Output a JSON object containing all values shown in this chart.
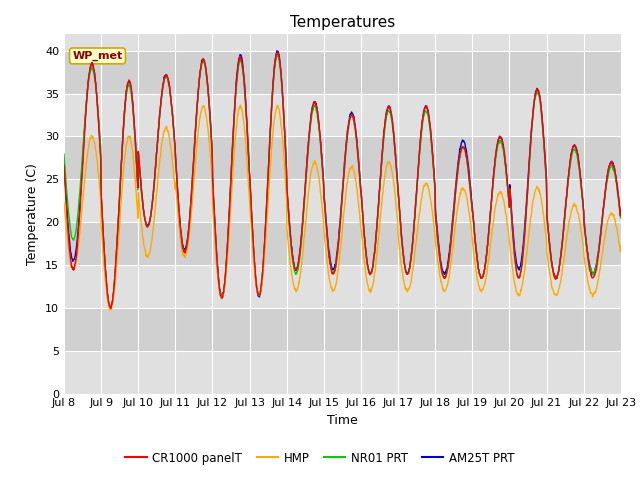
{
  "title": "Temperatures",
  "ylabel": "Temperature (C)",
  "xlabel": "Time",
  "annotation": "WP_met",
  "ylim": [
    0,
    42
  ],
  "yticks": [
    0,
    5,
    10,
    15,
    20,
    25,
    30,
    35,
    40
  ],
  "series": {
    "CR1000_panelT": {
      "color": "#ff0000",
      "label": "CR1000 panelT",
      "lw": 1.0
    },
    "HMP": {
      "color": "#ffaa00",
      "label": "HMP",
      "lw": 1.0
    },
    "NR01_PRT": {
      "color": "#00cc00",
      "label": "NR01 PRT",
      "lw": 1.0
    },
    "AM25T_PRT": {
      "color": "#0000cc",
      "label": "AM25T PRT",
      "lw": 1.0
    }
  },
  "xtick_labels": [
    "Jul 8",
    "Jul 9",
    "Jul 10",
    "Jul 11",
    "Jul 12",
    "Jul 13",
    "Jul 14",
    "Jul 15",
    "Jul 16",
    "Jul 17",
    "Jul 18",
    "Jul 19",
    "Jul 20",
    "Jul 21",
    "Jul 22",
    "Jul 23"
  ],
  "bg_light": "#e0e0e0",
  "bg_dark": "#d0d0d0",
  "grid_color": "#ffffff",
  "outer_bg": "#ffffff",
  "title_fontsize": 11,
  "label_fontsize": 9,
  "tick_fontsize": 8,
  "annotation_facecolor": "#ffffcc",
  "annotation_edgecolor": "#ccaa00",
  "annotation_textcolor": "#880000"
}
